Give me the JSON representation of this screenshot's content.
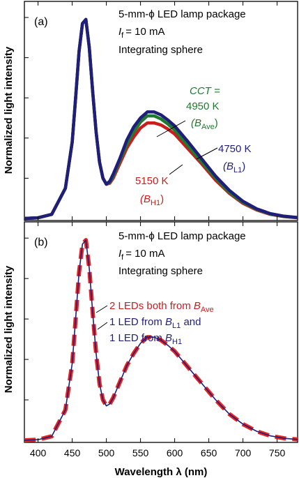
{
  "chart_data": [
    {
      "panel": "(a)",
      "type": "line",
      "xlim": [
        380,
        780
      ],
      "ylim": [
        0,
        1.08
      ],
      "ylabel": "Normalized light intensity",
      "annotations": {
        "lines": [
          "5-mm-ϕ LED lamp package",
          "= 10 mA",
          "Integrating sphere"
        ],
        "if_symbol": "I",
        "if_sub": "f"
      },
      "series": [
        {
          "label_text": "4950 K",
          "cct_label": "CCT =",
          "bin_base": "(B",
          "bin_sub": "Ave",
          "bin_close": ")",
          "color": "#1e7a2e",
          "x": [
            380,
            400,
            420,
            440,
            450,
            455,
            460,
            465,
            470,
            475,
            480,
            485,
            490,
            495,
            500,
            505,
            510,
            520,
            530,
            540,
            550,
            560,
            570,
            580,
            590,
            600,
            620,
            640,
            660,
            680,
            700,
            720,
            740,
            760,
            780
          ],
          "y": [
            0,
            0.003,
            0.02,
            0.15,
            0.38,
            0.6,
            0.83,
            0.97,
            0.99,
            0.85,
            0.63,
            0.43,
            0.28,
            0.2,
            0.17,
            0.18,
            0.21,
            0.29,
            0.37,
            0.43,
            0.48,
            0.51,
            0.51,
            0.495,
            0.47,
            0.44,
            0.36,
            0.28,
            0.2,
            0.13,
            0.08,
            0.045,
            0.022,
            0.01,
            0.004
          ]
        },
        {
          "label_text": "4750 K",
          "bin_base": "(B",
          "bin_sub": "L1",
          "bin_close": ")",
          "color": "#1f1f7a",
          "x": [
            380,
            400,
            420,
            440,
            450,
            455,
            460,
            465,
            470,
            475,
            480,
            485,
            490,
            495,
            500,
            505,
            510,
            520,
            530,
            540,
            550,
            560,
            570,
            580,
            590,
            600,
            620,
            640,
            660,
            680,
            700,
            720,
            740,
            760,
            780
          ],
          "y": [
            0,
            0.003,
            0.02,
            0.15,
            0.38,
            0.6,
            0.83,
            0.97,
            0.99,
            0.85,
            0.63,
            0.43,
            0.28,
            0.2,
            0.17,
            0.185,
            0.22,
            0.3,
            0.39,
            0.455,
            0.5,
            0.53,
            0.53,
            0.515,
            0.49,
            0.46,
            0.38,
            0.295,
            0.21,
            0.14,
            0.085,
            0.048,
            0.024,
            0.011,
            0.004
          ]
        },
        {
          "label_text": "5150 K",
          "bin_base": "(B",
          "bin_sub": "H1",
          "bin_close": ")",
          "color": "#c81e1e",
          "x": [
            380,
            400,
            420,
            440,
            450,
            455,
            460,
            465,
            470,
            475,
            480,
            485,
            490,
            495,
            500,
            505,
            510,
            520,
            530,
            540,
            550,
            560,
            570,
            580,
            590,
            600,
            620,
            640,
            660,
            680,
            700,
            720,
            740,
            760,
            780
          ],
          "y": [
            0,
            0.003,
            0.02,
            0.15,
            0.38,
            0.6,
            0.83,
            0.97,
            0.99,
            0.85,
            0.63,
            0.43,
            0.28,
            0.2,
            0.17,
            0.175,
            0.2,
            0.275,
            0.35,
            0.405,
            0.45,
            0.475,
            0.475,
            0.465,
            0.445,
            0.42,
            0.345,
            0.27,
            0.19,
            0.125,
            0.075,
            0.042,
            0.02,
            0.009,
            0.003
          ]
        }
      ]
    },
    {
      "panel": "(b)",
      "type": "line",
      "xlim": [
        380,
        780
      ],
      "ylim": [
        0,
        1.08
      ],
      "ylabel": "Normalized light intensity",
      "xlabel": "Wavelength λ (nm)",
      "xticks": [
        400,
        450,
        500,
        550,
        600,
        650,
        700,
        750
      ],
      "annotations": {
        "lines": [
          "5-mm-ϕ LED lamp package",
          "= 10 mA",
          "Integrating sphere"
        ],
        "if_symbol": "I",
        "if_sub": "f"
      },
      "series": [
        {
          "legend_prefix": "2 LEDs both from ",
          "legend_sym": "B",
          "legend_sub": "Ave",
          "color": "#e8231f",
          "style": "dashed",
          "x": [
            380,
            400,
            420,
            440,
            450,
            455,
            460,
            465,
            470,
            475,
            480,
            485,
            490,
            495,
            500,
            505,
            510,
            520,
            530,
            540,
            550,
            560,
            570,
            580,
            590,
            600,
            620,
            640,
            660,
            680,
            700,
            720,
            740,
            760,
            780
          ],
          "y": [
            0,
            0.003,
            0.02,
            0.15,
            0.38,
            0.6,
            0.83,
            0.97,
            0.99,
            0.85,
            0.63,
            0.43,
            0.28,
            0.2,
            0.17,
            0.18,
            0.21,
            0.29,
            0.37,
            0.43,
            0.48,
            0.51,
            0.51,
            0.495,
            0.47,
            0.44,
            0.36,
            0.28,
            0.2,
            0.13,
            0.08,
            0.045,
            0.022,
            0.01,
            0.004
          ]
        },
        {
          "legend_line1_prefix": "1 LED from ",
          "legend_line1_sym": "B",
          "legend_line1_sub": "L1",
          "legend_line1_suffix": " and",
          "legend_line2_prefix": "1 LED from ",
          "legend_line2_sym": "B",
          "legend_line2_sub": "H1",
          "color": "#1f1f7a",
          "style": "solid",
          "x": [
            380,
            400,
            420,
            440,
            450,
            455,
            460,
            465,
            470,
            475,
            480,
            485,
            490,
            495,
            500,
            505,
            510,
            520,
            530,
            540,
            550,
            560,
            570,
            580,
            590,
            600,
            620,
            640,
            660,
            680,
            700,
            720,
            740,
            760,
            780
          ],
          "y": [
            0,
            0.003,
            0.02,
            0.15,
            0.38,
            0.6,
            0.83,
            0.97,
            0.99,
            0.85,
            0.63,
            0.43,
            0.28,
            0.2,
            0.17,
            0.18,
            0.21,
            0.29,
            0.37,
            0.43,
            0.48,
            0.51,
            0.51,
            0.495,
            0.47,
            0.44,
            0.36,
            0.28,
            0.2,
            0.13,
            0.08,
            0.045,
            0.022,
            0.01,
            0.004
          ]
        }
      ]
    }
  ]
}
